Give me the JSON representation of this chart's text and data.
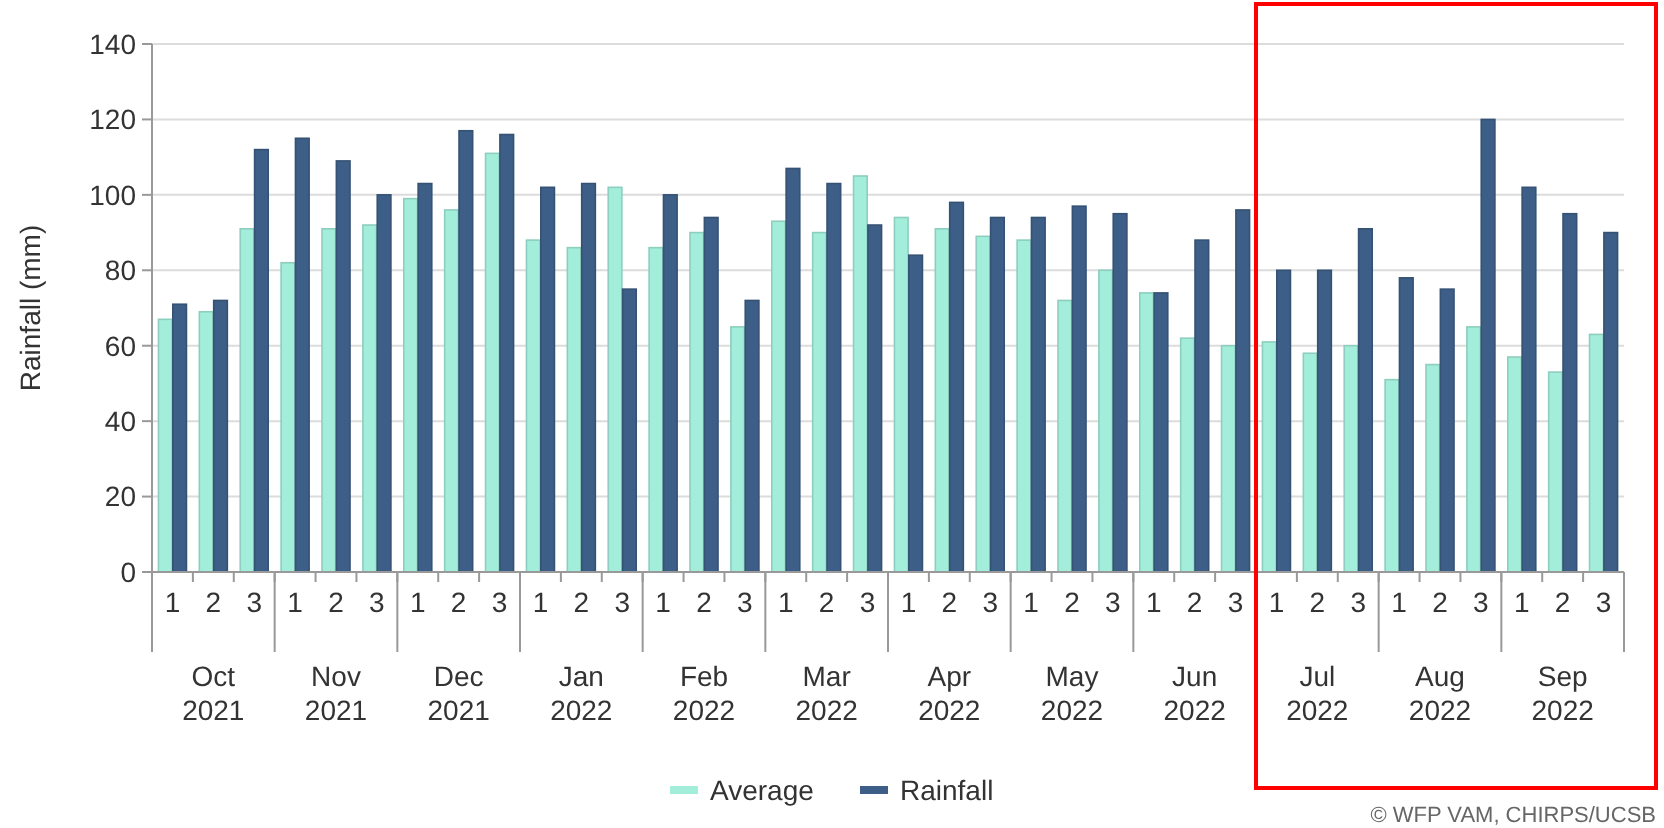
{
  "chart_data": {
    "type": "bar",
    "ylabel": "Rainfall (mm)",
    "categories": [
      "1",
      "2",
      "3",
      "1",
      "2",
      "3",
      "1",
      "2",
      "3",
      "1",
      "2",
      "3",
      "1",
      "2",
      "3",
      "1",
      "2",
      "3",
      "1",
      "2",
      "3",
      "1",
      "2",
      "3",
      "1",
      "2",
      "3",
      "1",
      "2",
      "3",
      "1",
      "2",
      "3",
      "1",
      "2",
      "3"
    ],
    "series": [
      {
        "name": "Average",
        "color": "#a3eedb",
        "values": [
          67,
          69,
          91,
          82,
          91,
          92,
          99,
          96,
          111,
          88,
          86,
          102,
          86,
          90,
          65,
          93,
          90,
          105,
          94,
          91,
          89,
          88,
          72,
          80,
          74,
          62,
          60,
          61,
          58,
          60,
          51,
          55,
          65,
          57,
          53,
          63
        ]
      },
      {
        "name": "Rainfall",
        "color": "#3d5e86",
        "values": [
          71,
          72,
          112,
          115,
          109,
          100,
          103,
          117,
          116,
          102,
          103,
          75,
          100,
          94,
          72,
          107,
          103,
          92,
          84,
          98,
          94,
          94,
          97,
          95,
          74,
          88,
          96,
          80,
          80,
          91,
          78,
          75,
          120,
          102,
          95,
          90
        ]
      }
    ],
    "ylim": [
      0,
      140
    ],
    "yticks": [
      0,
      20,
      40,
      60,
      80,
      100,
      120,
      140
    ],
    "grid": "y",
    "legend": "bottom",
    "annotations": [
      "Oct 2021",
      "Nov 2021",
      "Dec 2021",
      "Jan 2022",
      "Feb 2022",
      "Mar 2022",
      "Apr 2022",
      "May 2022",
      "Jun 2022",
      "Jul 2022",
      "Aug 2022",
      "Sep 2022",
      "© WFP VAM, CHIRPS/UCSB"
    ]
  }
}
